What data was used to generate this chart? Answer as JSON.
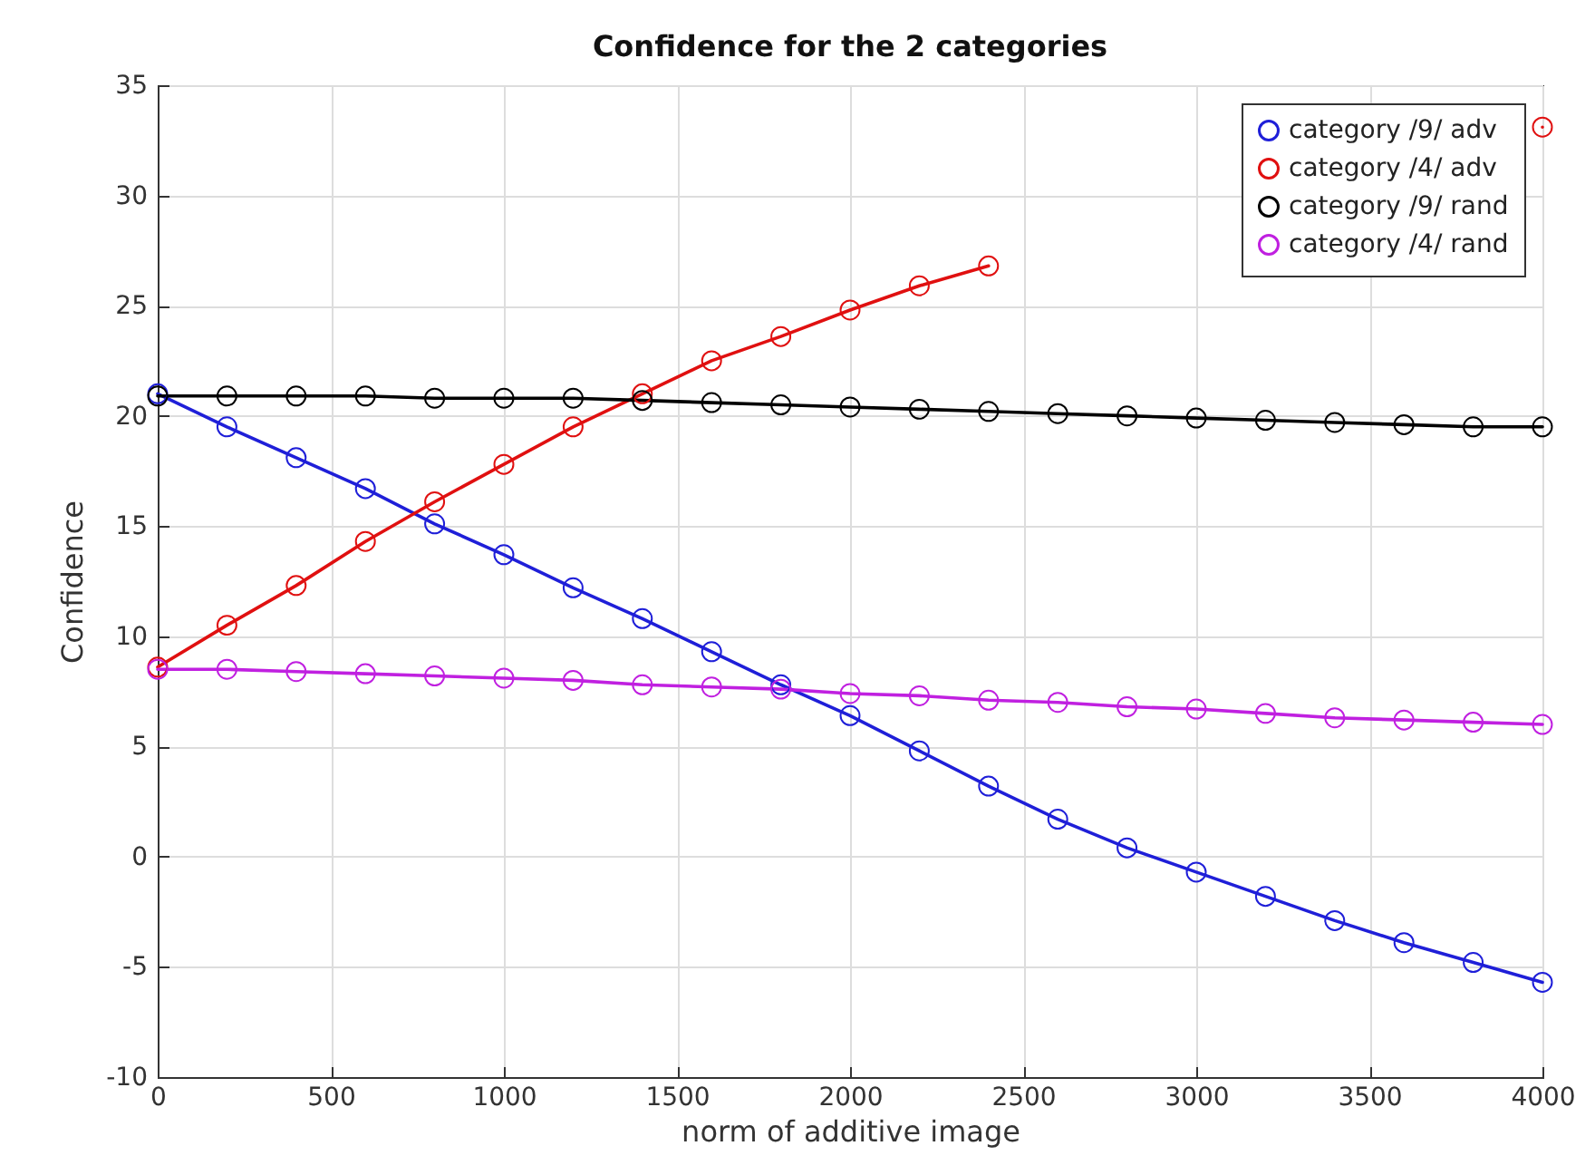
{
  "chart_data": {
    "type": "line",
    "title": "Confidence for the 2 categories",
    "xlabel": "norm of additive image",
    "ylabel": "Confidence",
    "x": [
      0,
      200,
      400,
      600,
      800,
      1000,
      1200,
      1400,
      1600,
      1800,
      2000,
      2200,
      2400,
      2600,
      2800,
      3000,
      3200,
      3400,
      3600,
      3800,
      4000
    ],
    "series": [
      {
        "name": "category /9/ adv",
        "color": "#1f1fd8",
        "values": [
          21,
          19.5,
          18.1,
          16.7,
          15.1,
          13.7,
          12.2,
          10.8,
          9.3,
          7.8,
          6.4,
          4.8,
          3.2,
          1.7,
          0.4,
          -0.7,
          -1.8,
          -2.9,
          -3.9,
          -4.8,
          -5.7
        ]
      },
      {
        "name": "category /4/ adv",
        "color": "#e01010",
        "values": [
          8.6,
          10.5,
          12.3,
          14.3,
          16.1,
          17.8,
          19.5,
          21.0,
          22.5,
          23.6,
          24.8,
          25.9,
          26.8,
          null,
          null,
          null,
          null,
          null,
          null,
          null,
          33.1
        ]
      },
      {
        "name": "category /9/ rand",
        "color": "#000000",
        "values": [
          20.9,
          20.9,
          20.9,
          20.9,
          20.8,
          20.8,
          20.8,
          20.7,
          20.6,
          20.5,
          20.4,
          20.3,
          20.2,
          20.1,
          20.0,
          19.9,
          19.8,
          19.7,
          19.6,
          19.5,
          19.5
        ]
      },
      {
        "name": "category /4/ rand",
        "color": "#c020e0",
        "values": [
          8.5,
          8.5,
          8.4,
          8.3,
          8.2,
          8.1,
          8.0,
          7.8,
          7.7,
          7.6,
          7.4,
          7.3,
          7.1,
          7.0,
          6.8,
          6.7,
          6.5,
          6.3,
          6.2,
          6.1,
          6.0
        ]
      }
    ],
    "xlim": [
      0,
      4000
    ],
    "xticks": [
      0,
      500,
      1000,
      1500,
      2000,
      2500,
      3000,
      3500,
      4000
    ],
    "ylim": [
      -10,
      35
    ],
    "yticks": [
      -10,
      -5,
      0,
      5,
      10,
      15,
      20,
      25,
      30,
      35
    ],
    "grid": true,
    "legend": "top right",
    "marker": "circle",
    "line_style": "solid"
  }
}
